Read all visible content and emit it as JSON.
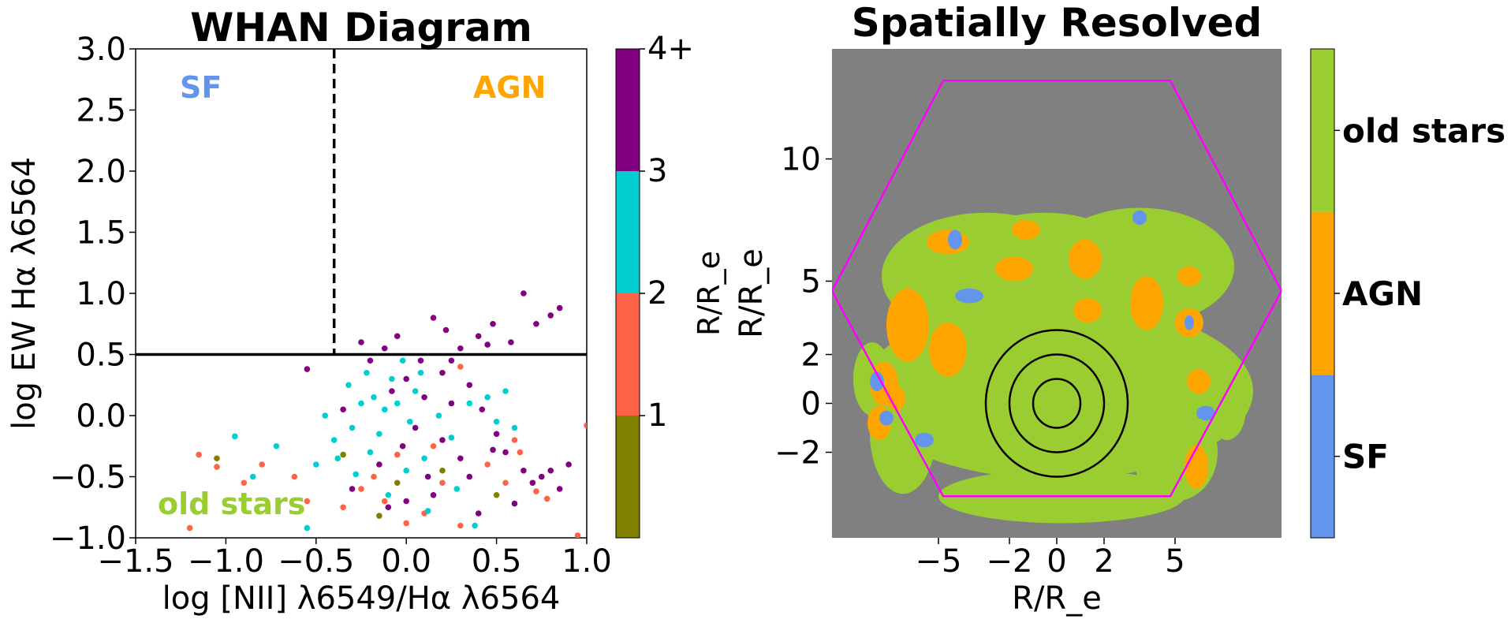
{
  "colors": {
    "sf": "#6495ED",
    "agn": "#FFA500",
    "old": "#9ACD32",
    "bin1": "#808000",
    "bin2": "#FF6347",
    "bin3": "#00CED1",
    "bin4": "#800080",
    "map_bg": "#808080",
    "hexagon": "#FF00FF"
  },
  "chart_data": [
    {
      "type": "scatter",
      "title": "WHAN Diagram",
      "xlabel": "log [NII] λ6549/Hα λ6564",
      "ylabel": "log EW Hα λ6564",
      "xlim": [
        -1.5,
        1.0
      ],
      "ylim": [
        -1.0,
        3.0
      ],
      "xticks": [
        "−1.5",
        "−1.0",
        "−0.5",
        "0.0",
        "0.5",
        "1.0"
      ],
      "yticks": [
        "−1.0",
        "−0.5",
        "0.0",
        "0.5",
        "1.0",
        "1.5",
        "2.0",
        "2.5",
        "3.0"
      ],
      "vline_x": -0.4,
      "hline_y": 0.5,
      "region_labels": [
        "SF",
        "AGN",
        "old stars"
      ],
      "colorbar": {
        "label": "R/R_e",
        "ticks": [
          "1",
          "2",
          "3",
          "4+"
        ],
        "bins": [
          [
            0,
            1
          ],
          [
            1,
            2
          ],
          [
            2,
            3
          ],
          [
            3,
            4
          ]
        ]
      },
      "points": [
        {
          "x": -1.15,
          "y": -0.32,
          "r": 1.5
        },
        {
          "x": -1.05,
          "y": -0.42,
          "r": 1.5
        },
        {
          "x": -0.8,
          "y": -0.4,
          "r": 1.5
        },
        {
          "x": -0.62,
          "y": -0.5,
          "r": 1.5
        },
        {
          "x": -0.55,
          "y": -0.7,
          "r": 1.5
        },
        {
          "x": -1.2,
          "y": -0.92,
          "r": 1.5
        },
        {
          "x": -0.18,
          "y": -0.5,
          "r": 1.5
        },
        {
          "x": -0.25,
          "y": -0.6,
          "r": 1.5
        },
        {
          "x": -0.12,
          "y": -0.7,
          "r": 1.5
        },
        {
          "x": 0.0,
          "y": -0.88,
          "r": 1.5
        },
        {
          "x": 0.1,
          "y": -0.8,
          "r": 1.5
        },
        {
          "x": 0.2,
          "y": -0.55,
          "r": 1.5
        },
        {
          "x": 0.3,
          "y": -0.9,
          "r": 1.5
        },
        {
          "x": 0.55,
          "y": -0.55,
          "r": 1.5
        },
        {
          "x": 0.63,
          "y": -0.3,
          "r": 1.5
        },
        {
          "x": 0.72,
          "y": -0.62,
          "r": 1.5
        },
        {
          "x": 0.78,
          "y": -0.68,
          "r": 1.5
        },
        {
          "x": 0.95,
          "y": -0.98,
          "r": 1.5
        },
        {
          "x": 1.0,
          "y": -0.08,
          "r": 1.5
        },
        {
          "x": 0.6,
          "y": -0.2,
          "r": 1.5
        },
        {
          "x": -0.05,
          "y": -0.32,
          "r": 1.5
        },
        {
          "x": 0.3,
          "y": 0.4,
          "r": 1.5
        },
        {
          "x": -0.35,
          "y": -0.75,
          "r": 1.5
        },
        {
          "x": 0.15,
          "y": -0.25,
          "r": 1.5
        },
        {
          "x": -0.9,
          "y": -0.55,
          "r": 1.5
        },
        {
          "x": 0.45,
          "y": -0.4,
          "r": 1.5
        },
        {
          "x": -1.05,
          "y": -0.35,
          "r": 0.5
        },
        {
          "x": -0.35,
          "y": -0.32,
          "r": 0.5
        },
        {
          "x": -0.15,
          "y": -0.82,
          "r": 0.5
        },
        {
          "x": 0.2,
          "y": -0.45,
          "r": 0.5
        },
        {
          "x": 0.5,
          "y": -0.65,
          "r": 0.5
        },
        {
          "x": -0.05,
          "y": -0.55,
          "r": 0.5
        },
        {
          "x": -0.95,
          "y": -0.17,
          "r": 2.5
        },
        {
          "x": -0.72,
          "y": -0.25,
          "r": 2.5
        },
        {
          "x": -0.85,
          "y": -0.5,
          "r": 2.5
        },
        {
          "x": -0.55,
          "y": -0.92,
          "r": 2.5
        },
        {
          "x": -0.38,
          "y": -0.35,
          "r": 2.5
        },
        {
          "x": -0.3,
          "y": -0.1,
          "r": 2.5
        },
        {
          "x": -0.25,
          "y": 0.1,
          "r": 2.5
        },
        {
          "x": -0.18,
          "y": 0.15,
          "r": 2.5
        },
        {
          "x": -0.12,
          "y": 0.05,
          "r": 2.5
        },
        {
          "x": -0.08,
          "y": 0.3,
          "r": 2.5
        },
        {
          "x": -0.02,
          "y": 0.45,
          "r": 2.5
        },
        {
          "x": 0.02,
          "y": -0.05,
          "r": 2.5
        },
        {
          "x": 0.05,
          "y": 0.2,
          "r": 2.5
        },
        {
          "x": 0.1,
          "y": -0.35,
          "r": 2.5
        },
        {
          "x": -0.2,
          "y": -0.3,
          "r": 2.5
        },
        {
          "x": -0.28,
          "y": -0.48,
          "r": 2.5
        },
        {
          "x": -0.1,
          "y": -0.65,
          "r": 2.5
        },
        {
          "x": 0.12,
          "y": -0.78,
          "r": 2.5
        },
        {
          "x": 0.25,
          "y": -0.18,
          "r": 2.5
        },
        {
          "x": 0.35,
          "y": 0.1,
          "r": 2.5
        },
        {
          "x": 0.45,
          "y": 0.15,
          "r": 2.5
        },
        {
          "x": 0.55,
          "y": 0.2,
          "r": 2.5
        },
        {
          "x": 0.5,
          "y": -0.05,
          "r": 2.5
        },
        {
          "x": 0.38,
          "y": -0.9,
          "r": 2.5
        },
        {
          "x": -0.45,
          "y": 0.0,
          "r": 2.5
        },
        {
          "x": -0.15,
          "y": -0.15,
          "r": 2.5
        },
        {
          "x": -0.05,
          "y": 0.1,
          "r": 2.5
        },
        {
          "x": 0.08,
          "y": 0.35,
          "r": 2.5
        },
        {
          "x": -0.32,
          "y": 0.25,
          "r": 2.5
        },
        {
          "x": 0.18,
          "y": 0.0,
          "r": 2.5
        },
        {
          "x": -0.5,
          "y": -0.4,
          "r": 2.5
        },
        {
          "x": 0.0,
          "y": -0.45,
          "r": 2.5
        },
        {
          "x": -0.22,
          "y": 0.35,
          "r": 2.5
        },
        {
          "x": 0.28,
          "y": -0.6,
          "r": 2.5
        },
        {
          "x": 0.6,
          "y": -0.1,
          "r": 2.5
        },
        {
          "x": -0.4,
          "y": -0.2,
          "r": 2.5
        },
        {
          "x": -0.25,
          "y": 0.6,
          "r": 3.5
        },
        {
          "x": -0.12,
          "y": 0.55,
          "r": 3.5
        },
        {
          "x": -0.05,
          "y": 0.65,
          "r": 3.5
        },
        {
          "x": 0.15,
          "y": 0.8,
          "r": 3.5
        },
        {
          "x": 0.22,
          "y": 0.7,
          "r": 3.5
        },
        {
          "x": 0.3,
          "y": 0.55,
          "r": 3.5
        },
        {
          "x": 0.4,
          "y": 0.65,
          "r": 3.5
        },
        {
          "x": 0.48,
          "y": 0.75,
          "r": 3.5
        },
        {
          "x": 0.58,
          "y": 0.6,
          "r": 3.5
        },
        {
          "x": 0.65,
          "y": 1.0,
          "r": 3.5
        },
        {
          "x": 0.72,
          "y": 0.75,
          "r": 3.5
        },
        {
          "x": 0.8,
          "y": 0.82,
          "r": 3.5
        },
        {
          "x": 0.85,
          "y": 0.88,
          "r": 3.5
        },
        {
          "x": 0.45,
          "y": 0.58,
          "r": 3.5
        },
        {
          "x": -0.55,
          "y": 0.38,
          "r": 3.5
        },
        {
          "x": -0.2,
          "y": 0.45,
          "r": 3.5
        },
        {
          "x": -0.08,
          "y": 0.2,
          "r": 3.5
        },
        {
          "x": 0.0,
          "y": 0.3,
          "r": 3.5
        },
        {
          "x": 0.1,
          "y": 0.15,
          "r": 3.5
        },
        {
          "x": 0.2,
          "y": 0.35,
          "r": 3.5
        },
        {
          "x": 0.25,
          "y": 0.1,
          "r": 3.5
        },
        {
          "x": 0.35,
          "y": 0.25,
          "r": 3.5
        },
        {
          "x": 0.42,
          "y": 0.05,
          "r": 3.5
        },
        {
          "x": 0.5,
          "y": -0.15,
          "r": 3.5
        },
        {
          "x": 0.55,
          "y": -0.3,
          "r": 3.5
        },
        {
          "x": 0.65,
          "y": -0.45,
          "r": 3.5
        },
        {
          "x": 0.7,
          "y": -0.55,
          "r": 3.5
        },
        {
          "x": 0.75,
          "y": -0.5,
          "r": 3.5
        },
        {
          "x": 0.8,
          "y": -0.45,
          "r": 3.5
        },
        {
          "x": 0.85,
          "y": -0.6,
          "r": 3.5
        },
        {
          "x": 0.6,
          "y": -0.72,
          "r": 3.5
        },
        {
          "x": 0.3,
          "y": -0.35,
          "r": 3.5
        },
        {
          "x": 0.2,
          "y": -0.2,
          "r": 3.5
        },
        {
          "x": 0.05,
          "y": -0.1,
          "r": 3.5
        },
        {
          "x": -0.02,
          "y": -0.25,
          "r": 3.5
        },
        {
          "x": 0.12,
          "y": -0.5,
          "r": 3.5
        },
        {
          "x": 0.0,
          "y": -0.7,
          "r": 3.5
        },
        {
          "x": -0.1,
          "y": -0.75,
          "r": 3.5
        },
        {
          "x": -0.15,
          "y": -0.4,
          "r": 3.5
        },
        {
          "x": -0.3,
          "y": -0.6,
          "r": 3.5
        },
        {
          "x": 0.4,
          "y": -0.8,
          "r": 3.5
        },
        {
          "x": 0.15,
          "y": -0.65,
          "r": 3.5
        },
        {
          "x": 0.35,
          "y": -0.5,
          "r": 3.5
        },
        {
          "x": 0.48,
          "y": -0.28,
          "r": 3.5
        },
        {
          "x": 0.9,
          "y": -0.4,
          "r": 3.5
        },
        {
          "x": 0.25,
          "y": 0.45,
          "r": 3.5
        },
        {
          "x": -0.35,
          "y": 0.05,
          "r": 3.5
        },
        {
          "x": 0.08,
          "y": 0.45,
          "r": 3.5
        }
      ]
    },
    {
      "type": "heatmap",
      "title": "Spatially Resolved",
      "xlabel": "R/R_e",
      "ylabel": "R/R_e",
      "xlim": [
        -9.5,
        9.5
      ],
      "ylim": [
        -5.5,
        14.5
      ],
      "xticks": [
        -5,
        -2,
        0,
        2,
        5
      ],
      "yticks": [
        -2,
        0,
        2,
        5,
        10
      ],
      "contour_radii": [
        1,
        2,
        3
      ],
      "hexagon_vertices": [
        [
          -4.8,
          13.2
        ],
        [
          4.8,
          13.2
        ],
        [
          9.5,
          4.6
        ],
        [
          4.8,
          -3.8
        ],
        [
          -4.8,
          -3.8
        ],
        [
          -9.5,
          4.6
        ]
      ],
      "colorbar": {
        "categories": [
          "SF",
          "AGN",
          "old stars"
        ]
      },
      "regions": [
        {
          "cls": "old",
          "cx": 0.0,
          "cy": 0.5,
          "rx": 8.3,
          "ry": 3.6
        },
        {
          "cls": "old",
          "cx": -3.0,
          "cy": 5.2,
          "rx": 4.4,
          "ry": 2.6
        },
        {
          "cls": "old",
          "cx": 3.5,
          "cy": 5.6,
          "rx": 4.0,
          "ry": 2.4
        },
        {
          "cls": "old",
          "cx": -0.5,
          "cy": 6.9,
          "rx": 2.6,
          "ry": 0.9
        },
        {
          "cls": "old",
          "cx": 0.2,
          "cy": -3.8,
          "rx": 5.2,
          "ry": 1.1
        },
        {
          "cls": "old",
          "cx": 1.2,
          "cy": 2.9,
          "rx": 3.5,
          "ry": 0.9
        },
        {
          "cls": "old",
          "cx": 5.0,
          "cy": -2.0,
          "rx": 1.8,
          "ry": 2.0
        },
        {
          "cls": "old",
          "cx": -6.5,
          "cy": -1.2,
          "rx": 1.4,
          "ry": 2.5
        },
        {
          "cls": "old",
          "cx": -7.8,
          "cy": 1.0,
          "rx": 0.8,
          "ry": 1.5
        },
        {
          "cls": "old",
          "cx": 7.2,
          "cy": -0.2,
          "rx": 0.8,
          "ry": 1.3
        },
        {
          "cls": "agn",
          "cx": -6.3,
          "cy": 3.2,
          "rx": 0.9,
          "ry": 1.5
        },
        {
          "cls": "agn",
          "cx": -4.6,
          "cy": 2.2,
          "rx": 0.8,
          "ry": 1.1
        },
        {
          "cls": "agn",
          "cx": -7.3,
          "cy": 0.8,
          "rx": 0.6,
          "ry": 0.9
        },
        {
          "cls": "agn",
          "cx": -7.5,
          "cy": -0.8,
          "rx": 0.5,
          "ry": 0.7
        },
        {
          "cls": "agn",
          "cx": -4.6,
          "cy": 6.6,
          "rx": 0.9,
          "ry": 0.5
        },
        {
          "cls": "agn",
          "cx": -1.8,
          "cy": 5.5,
          "rx": 0.8,
          "ry": 0.5
        },
        {
          "cls": "agn",
          "cx": -1.3,
          "cy": 7.1,
          "rx": 0.6,
          "ry": 0.4
        },
        {
          "cls": "agn",
          "cx": 1.2,
          "cy": 5.9,
          "rx": 0.7,
          "ry": 0.8
        },
        {
          "cls": "agn",
          "cx": 1.3,
          "cy": 3.8,
          "rx": 0.6,
          "ry": 0.5
        },
        {
          "cls": "agn",
          "cx": 3.8,
          "cy": 4.1,
          "rx": 0.7,
          "ry": 1.1
        },
        {
          "cls": "agn",
          "cx": 5.6,
          "cy": 5.2,
          "rx": 0.5,
          "ry": 0.4
        },
        {
          "cls": "agn",
          "cx": 5.6,
          "cy": 3.3,
          "rx": 0.6,
          "ry": 0.6
        },
        {
          "cls": "agn",
          "cx": 6.0,
          "cy": 0.9,
          "rx": 0.5,
          "ry": 0.5
        },
        {
          "cls": "agn",
          "cx": 5.9,
          "cy": -2.6,
          "rx": 0.5,
          "ry": 0.9
        },
        {
          "cls": "agn",
          "cx": -6.8,
          "cy": 0.2,
          "rx": 0.4,
          "ry": 0.5
        },
        {
          "cls": "sf",
          "cx": -4.3,
          "cy": 6.7,
          "rx": 0.3,
          "ry": 0.4
        },
        {
          "cls": "sf",
          "cx": -3.7,
          "cy": 4.4,
          "rx": 0.6,
          "ry": 0.3
        },
        {
          "cls": "sf",
          "cx": -7.6,
          "cy": 0.9,
          "rx": 0.3,
          "ry": 0.4
        },
        {
          "cls": "sf",
          "cx": -7.2,
          "cy": -0.6,
          "rx": 0.3,
          "ry": 0.3
        },
        {
          "cls": "sf",
          "cx": -5.6,
          "cy": -1.5,
          "rx": 0.4,
          "ry": 0.3
        },
        {
          "cls": "sf",
          "cx": 3.5,
          "cy": 7.6,
          "rx": 0.3,
          "ry": 0.3
        },
        {
          "cls": "sf",
          "cx": 6.3,
          "cy": -0.4,
          "rx": 0.4,
          "ry": 0.3
        },
        {
          "cls": "sf",
          "cx": 5.6,
          "cy": 3.3,
          "rx": 0.2,
          "ry": 0.3
        }
      ]
    }
  ]
}
